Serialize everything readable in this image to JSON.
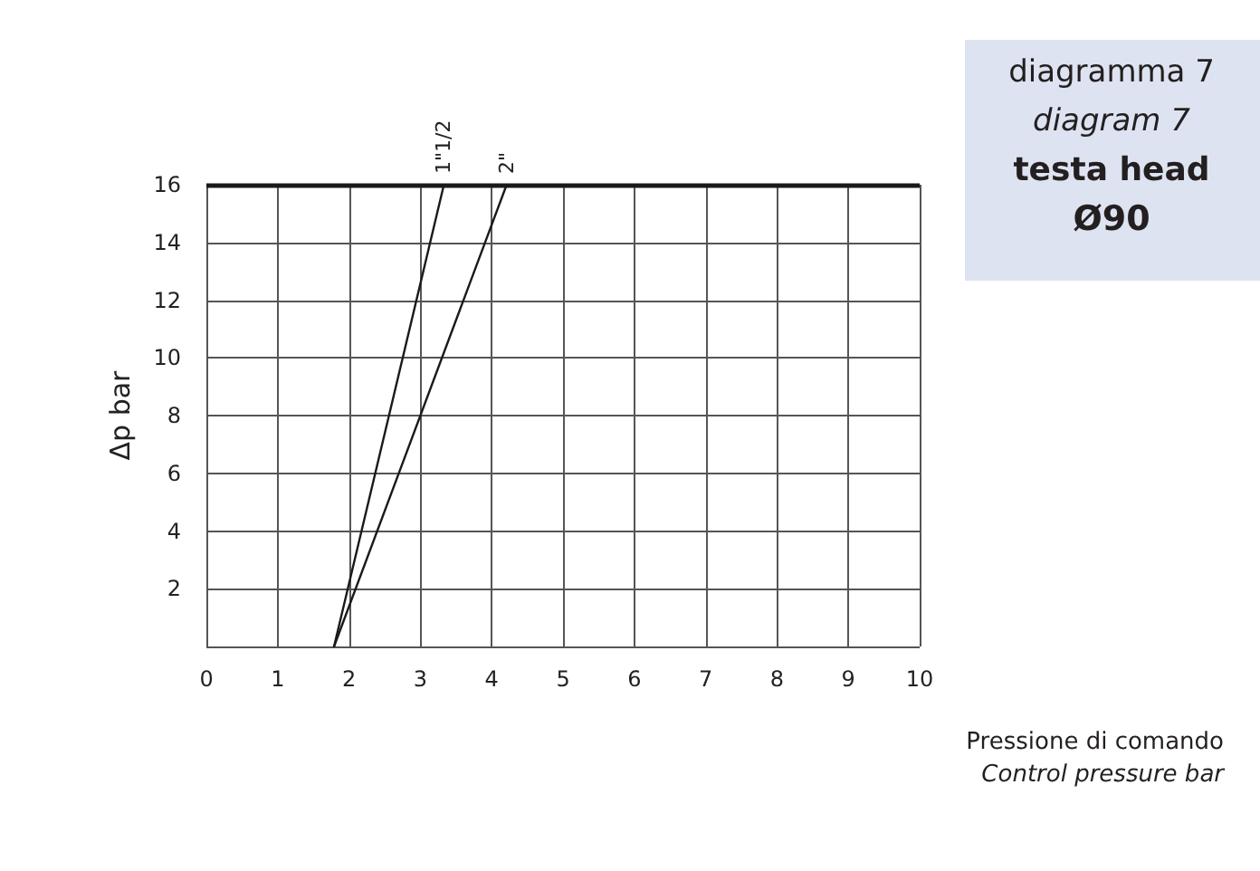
{
  "chart_data": {
    "type": "line",
    "xlabel": "Pressione di comando\nControl pressure bar",
    "ylabel": "Δp bar",
    "series": [
      {
        "name": "1\"1/2",
        "color": "#1a1a1a",
        "x": [
          1.79,
          3.33
        ],
        "values": [
          0,
          16
        ]
      },
      {
        "name": "2\"",
        "color": "#1a1a1a",
        "x": [
          1.79,
          4.21
        ],
        "values": [
          0,
          16
        ]
      }
    ],
    "xlim": [
      0,
      10
    ],
    "xticks": [
      0,
      1,
      2,
      3,
      4,
      5,
      6,
      7,
      8,
      9,
      10
    ],
    "ylim": [
      0,
      16
    ],
    "yticks": [
      {
        "value": 0,
        "label": null
      },
      2,
      4,
      6,
      8,
      10,
      12,
      14,
      16
    ],
    "grid": true,
    "legend": false,
    "marker": "none",
    "line_style": "solid",
    "ref_lines": [
      {
        "axis": "y",
        "value": 16,
        "color": "#1a1a1a"
      }
    ],
    "annotations": [
      "diagramma 7",
      "diagram 7",
      "testa head",
      "Ø90"
    ]
  }
}
